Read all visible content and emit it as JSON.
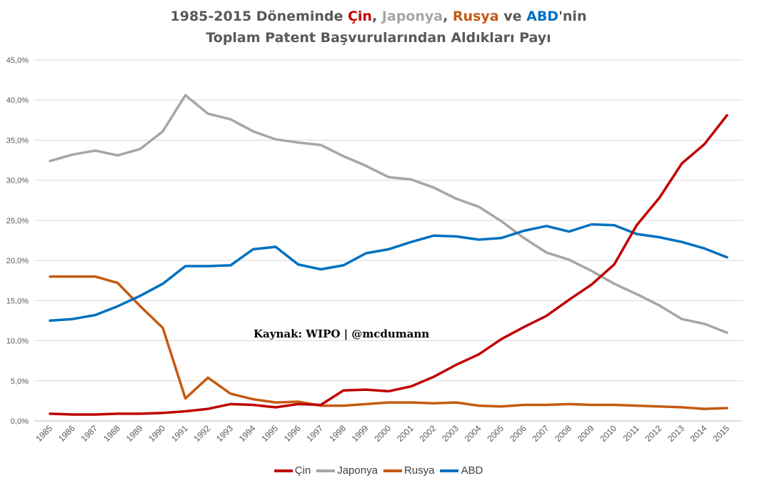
{
  "title": {
    "line1_prefix": "1985-2015 Döneminde ",
    "cin": "Çin",
    "sep1": ", ",
    "japonya": "Japonya",
    "sep2": ", ",
    "rusya": "Rusya",
    "sep3": " ve ",
    "abd": "ABD",
    "line1_suffix": "'nin",
    "line2": "Toplam Patent Başvurularından Aldıkları Payı"
  },
  "source_text": "Kaynak: WIPO | @mcdumann",
  "chart_data": {
    "type": "line",
    "title": "1985-2015 Döneminde Çin, Japonya, Rusya ve ABD'nin Toplam Patent Başvurularından Aldıkları Payı",
    "xlabel": "",
    "ylabel": "",
    "ylim": [
      0,
      45
    ],
    "y_ticks": [
      "0,0%",
      "5,0%",
      "10,0%",
      "15,0%",
      "20,0%",
      "25,0%",
      "30,0%",
      "35,0%",
      "40,0%",
      "45,0%"
    ],
    "grid": true,
    "legend_position": "bottom",
    "categories": [
      "1985",
      "1986",
      "1987",
      "1988",
      "1989",
      "1990",
      "1991",
      "1992",
      "1993",
      "1994",
      "1995",
      "1996",
      "1997",
      "1998",
      "1999",
      "2000",
      "2001",
      "2002",
      "2003",
      "2004",
      "2005",
      "2006",
      "2007",
      "2008",
      "2009",
      "2010",
      "2011",
      "2012",
      "2013",
      "2014",
      "2015"
    ],
    "series": [
      {
        "name": "Çin",
        "color": "#c00000",
        "values": [
          0.9,
          0.8,
          0.8,
          0.9,
          0.9,
          1.0,
          1.2,
          1.5,
          2.1,
          2.0,
          1.7,
          2.1,
          2.0,
          3.8,
          3.9,
          3.7,
          4.3,
          5.5,
          7.0,
          8.3,
          10.2,
          11.7,
          13.1,
          15.1,
          17.0,
          19.5,
          24.4,
          27.8,
          32.1,
          34.5,
          38.1
        ]
      },
      {
        "name": "Japonya",
        "color": "#a6a6a6",
        "values": [
          32.4,
          33.2,
          33.7,
          33.1,
          33.9,
          36.1,
          40.6,
          38.3,
          37.6,
          36.1,
          35.1,
          34.7,
          34.4,
          33.0,
          31.8,
          30.4,
          30.1,
          29.1,
          27.7,
          26.7,
          24.9,
          22.8,
          21.0,
          20.1,
          18.7,
          17.1,
          15.8,
          14.4,
          12.7,
          12.1,
          11.0
        ]
      },
      {
        "name": "Rusya",
        "color": "#c55a11",
        "values": [
          18.0,
          18.0,
          18.0,
          17.2,
          14.3,
          11.6,
          2.8,
          5.4,
          3.4,
          2.7,
          2.3,
          2.4,
          1.9,
          1.9,
          2.1,
          2.3,
          2.3,
          2.2,
          2.3,
          1.9,
          1.8,
          2.0,
          2.0,
          2.1,
          2.0,
          2.0,
          1.9,
          1.8,
          1.7,
          1.5,
          1.6
        ]
      },
      {
        "name": "ABD",
        "color": "#0070c0",
        "values": [
          12.5,
          12.7,
          13.2,
          14.3,
          15.6,
          17.1,
          19.3,
          19.3,
          19.4,
          21.4,
          21.7,
          19.5,
          18.9,
          19.4,
          20.9,
          21.4,
          22.3,
          23.1,
          23.0,
          22.6,
          22.8,
          23.7,
          24.3,
          23.6,
          24.5,
          24.4,
          23.3,
          22.9,
          22.3,
          21.5,
          20.4
        ]
      }
    ]
  }
}
